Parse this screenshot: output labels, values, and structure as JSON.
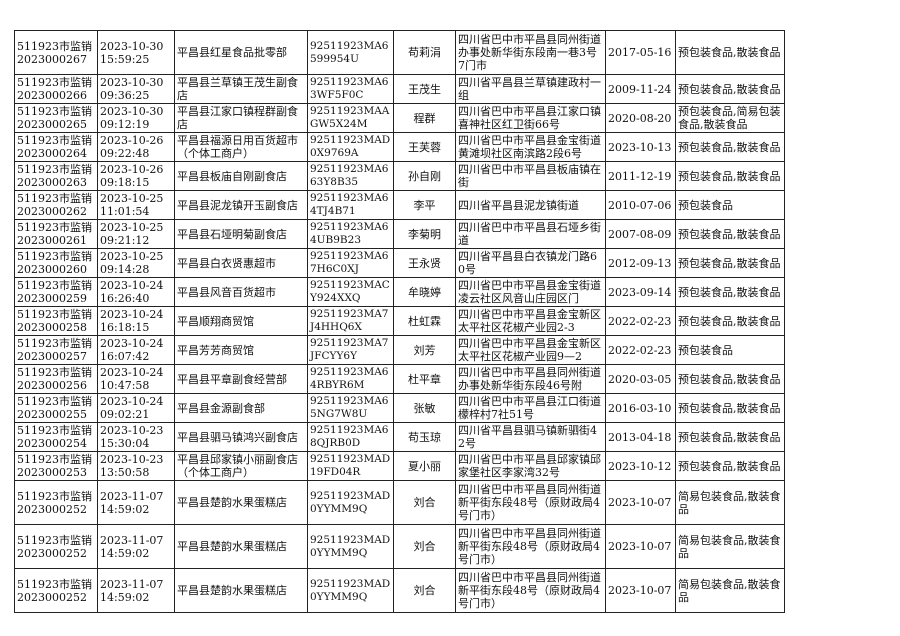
{
  "rows": [
    [
      "511923市监销2023000267",
      "2023-10-30 15:59:25",
      "平昌县红星食品批零部",
      "92511923MA6599954U",
      "苟莉涓",
      "四川省巴中市平昌县同州街道办事处新华街东段南一巷3号7门市",
      "2017-05-16",
      "预包装食品,散装食品"
    ],
    [
      "511923市监销2023000266",
      "2023-10-30 09:36:25",
      "平昌县兰草镇王茂生副食店",
      "92511923MA63WF5F0C",
      "王茂生",
      "四川省平昌县兰草镇建政村一组",
      "2009-11-24",
      "预包装食品,散装食品"
    ],
    [
      "511923市监销2023000265",
      "2023-10-30 09:12:19",
      "平昌县江家口镇程群副食店",
      "92511923MAAGW5X24M",
      "程群",
      "四川省巴中市平昌县江家口镇喜神社区红卫街66号",
      "2020-08-20",
      "预包装食品,简易包装食品,散装食品"
    ],
    [
      "511923市监销2023000264",
      "2023-10-26 09:22:48",
      "平昌县福源日用百货超市（个体工商户）",
      "92511923MAD0X9769A",
      "王芙蓉",
      "四川省巴中市平昌县金宝街道黄滩坝社区南滨路2段6号",
      "2023-10-13",
      "预包装食品,散装食品"
    ],
    [
      "511923市监销2023000263",
      "2023-10-26 09:18:15",
      "平昌县板庙自刚副食店",
      "92511923MA663Y8B35",
      "孙自刚",
      "四川省巴中市平昌县板庙镇在街",
      "2011-12-19",
      "预包装食品,散装食品"
    ],
    [
      "511923市监销2023000262",
      "2023-10-25 11:01:54",
      "平昌县泥龙镇开玉副食店",
      "92511923MA64TJ4B71",
      "李平",
      "四川省平昌县泥龙镇街道",
      "2010-07-06",
      "预包装食品"
    ],
    [
      "511923市监销2023000261",
      "2023-10-25 09:21:12",
      "平昌县石垭明菊副食店",
      "92511923MA64UB9B23",
      "李菊明",
      "四川省巴中市平昌县石垭乡街道",
      "2007-08-09",
      "预包装食品,散装食品"
    ],
    [
      "511923市监销2023000260",
      "2023-10-25 09:14:28",
      "平昌县白衣贤惠超市",
      "92511923MA67H6C0XJ",
      "王永贤",
      "四川省平昌县白衣镇龙门路60号",
      "2012-09-13",
      "预包装食品,散装食品"
    ],
    [
      "511923市监销2023000259",
      "2023-10-24 16:26:40",
      "平昌县风音百货超市",
      "92511923MACY924XXQ",
      "牟晓婷",
      "四川省巴中市平昌县金宝街道凌云社区风音山庄园区门",
      "2023-09-14",
      "预包装食品,散装食品"
    ],
    [
      "511923市监销2023000258",
      "2023-10-24 16:18:15",
      "平昌顺翔商贸馆",
      "92511923MA7J4HHQ6X",
      "杜虹霖",
      "四川省巴中市平昌县金宝新区太平社区花椒产业园2-3",
      "2022-02-23",
      "预包装食品,散装食品"
    ],
    [
      "511923市监销2023000257",
      "2023-10-24 16:07:42",
      "平昌芳芳商贸馆",
      "92511923MA7JFCYY6Y",
      "刘芳",
      "四川省巴中市平昌县金宝新区太平社区花椒产业园9—2",
      "2022-02-23",
      "预包装食品"
    ],
    [
      "511923市监销2023000256",
      "2023-10-24 10:47:58",
      "平昌县平章副食经营部",
      "92511923MA64RBYR6M",
      "杜平章",
      "四川省巴中市平昌县同州街道办事处新华街东段46号附",
      "2020-03-05",
      "预包装食品,散装食品"
    ],
    [
      "511923市监销2023000255",
      "2023-10-24 09:02:21",
      "平昌县金源副食部",
      "92511923MA65NG7W8U",
      "张敏",
      "四川省巴中市平昌县江口街道檬梓村7社51号",
      "2016-03-10",
      "预包装食品,散装食品"
    ],
    [
      "511923市监销2023000254",
      "2023-10-23 15:30:04",
      "平昌县驷马镇鸿兴副食店",
      "92511923MA68QJRB0D",
      "苟玉琼",
      "四川省平昌县驷马镇新驷街42号",
      "2013-04-18",
      "预包装食品,散装食品"
    ],
    [
      "511923市监销2023000253",
      "2023-10-23 13:50:58",
      "平昌县邱家镇小丽副食店（个体工商户）",
      "92511923MAD19FD04R",
      "夏小丽",
      "四川省巴中市平昌县邱家镇邱家堡社区李家湾32号",
      "2023-10-12",
      "预包装食品,散装食品"
    ],
    [
      "511923市监销2023000252",
      "2023-11-07 14:59:02",
      "平昌县楚韵水果蛋糕店",
      "92511923MAD0YYMM9Q",
      "刘合",
      "四川省巴中市平昌县同州街道新平街东段48号（原财政局4号门市）",
      "2023-10-07",
      "简易包装食品,散装食品"
    ],
    [
      "511923市监销2023000252",
      "2023-11-07 14:59:02",
      "平昌县楚韵水果蛋糕店",
      "92511923MAD0YYMM9Q",
      "刘合",
      "四川省巴中市平昌县同州街道新平街东段48号（原财政局4号门市）",
      "2023-10-07",
      "简易包装食品,散装食品"
    ],
    [
      "511923市监销2023000252",
      "2023-11-07 14:59:02",
      "平昌县楚韵水果蛋糕店",
      "92511923MAD0YYMM9Q",
      "刘合",
      "四川省巴中市平昌县同州街道新平街东段48号（原财政局4号门市）",
      "2023-10-07",
      "简易包装食品,散装食品"
    ]
  ]
}
